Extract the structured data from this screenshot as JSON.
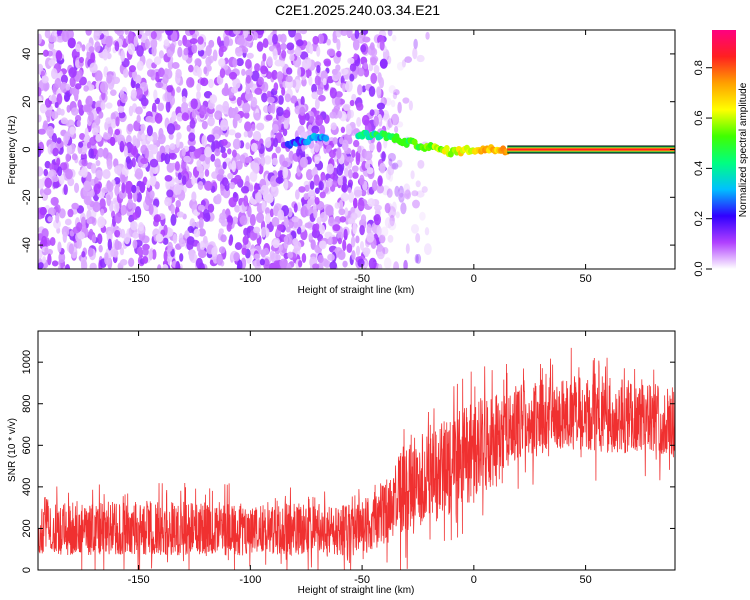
{
  "title": "C2E1.2025.240.03.34.E21",
  "chart_data": [
    {
      "type": "heatmap",
      "name": "spectrogram",
      "xlabel": "Height of straight line (km)",
      "ylabel": "Frequency (Hz)",
      "xlim": [
        -195,
        90
      ],
      "ylim": [
        -50,
        50
      ],
      "xticks": [
        -150,
        -100,
        -50,
        0,
        50
      ],
      "yticks": [
        -40,
        -20,
        0,
        20,
        40
      ],
      "colorbar": {
        "label": "Normalized spectral amplitude",
        "range": [
          0,
          0.95
        ],
        "ticks": [
          0.0,
          0.2,
          0.4,
          0.6,
          0.8
        ],
        "colors": [
          "#ffffff",
          "#b040ff",
          "#3000ff",
          "#00c0ff",
          "#00ff80",
          "#40ff00",
          "#ffff00",
          "#ffa000",
          "#ff2020",
          "#ff0080"
        ]
      },
      "features": {
        "noise_region": [
          -195,
          -40
        ],
        "signal_track": [
          {
            "x": -85,
            "y": 1
          },
          {
            "x": -80,
            "y": 3
          },
          {
            "x": -70,
            "y": 5
          },
          {
            "x": -50,
            "y": 6
          },
          {
            "x": -40,
            "y": 6
          },
          {
            "x": -30,
            "y": 3
          },
          {
            "x": -20,
            "y": 1
          },
          {
            "x": -10,
            "y": -1
          },
          {
            "x": 0,
            "y": 0
          },
          {
            "x": 15,
            "y": 0
          }
        ],
        "line_band": {
          "x_start": 15,
          "x_end": 90,
          "y": 0,
          "amplitude": 0.85
        }
      }
    },
    {
      "type": "line",
      "name": "snr",
      "xlabel": "Height of straight line (km)",
      "ylabel": "SNR (10 * v/v)",
      "xlim": [
        -195,
        90
      ],
      "ylim": [
        0,
        1150
      ],
      "xticks": [
        -150,
        -100,
        -50,
        0,
        50
      ],
      "yticks": [
        0,
        200,
        400,
        600,
        800,
        1000
      ],
      "color": "#f03030",
      "envelope": [
        {
          "x": -195,
          "lo": 70,
          "hi": 330,
          "mean": 180
        },
        {
          "x": -150,
          "lo": 70,
          "hi": 330,
          "mean": 180
        },
        {
          "x": -100,
          "lo": 70,
          "hi": 330,
          "mean": 180
        },
        {
          "x": -60,
          "lo": 70,
          "hi": 320,
          "mean": 185
        },
        {
          "x": -50,
          "lo": 70,
          "hi": 340,
          "mean": 190
        },
        {
          "x": -40,
          "lo": 120,
          "hi": 420,
          "mean": 260
        },
        {
          "x": -30,
          "lo": 190,
          "hi": 620,
          "mean": 380
        },
        {
          "x": -20,
          "lo": 230,
          "hi": 700,
          "mean": 440
        },
        {
          "x": -10,
          "lo": 270,
          "hi": 750,
          "mean": 480
        },
        {
          "x": 0,
          "lo": 320,
          "hi": 800,
          "mean": 530
        },
        {
          "x": 10,
          "lo": 400,
          "hi": 850,
          "mean": 600
        },
        {
          "x": 20,
          "lo": 520,
          "hi": 890,
          "mean": 690
        },
        {
          "x": 40,
          "lo": 580,
          "hi": 950,
          "mean": 730
        },
        {
          "x": 60,
          "lo": 560,
          "hi": 930,
          "mean": 730
        },
        {
          "x": 80,
          "lo": 560,
          "hi": 900,
          "mean": 720
        },
        {
          "x": 90,
          "lo": 520,
          "hi": 880,
          "mean": 700
        }
      ]
    }
  ]
}
